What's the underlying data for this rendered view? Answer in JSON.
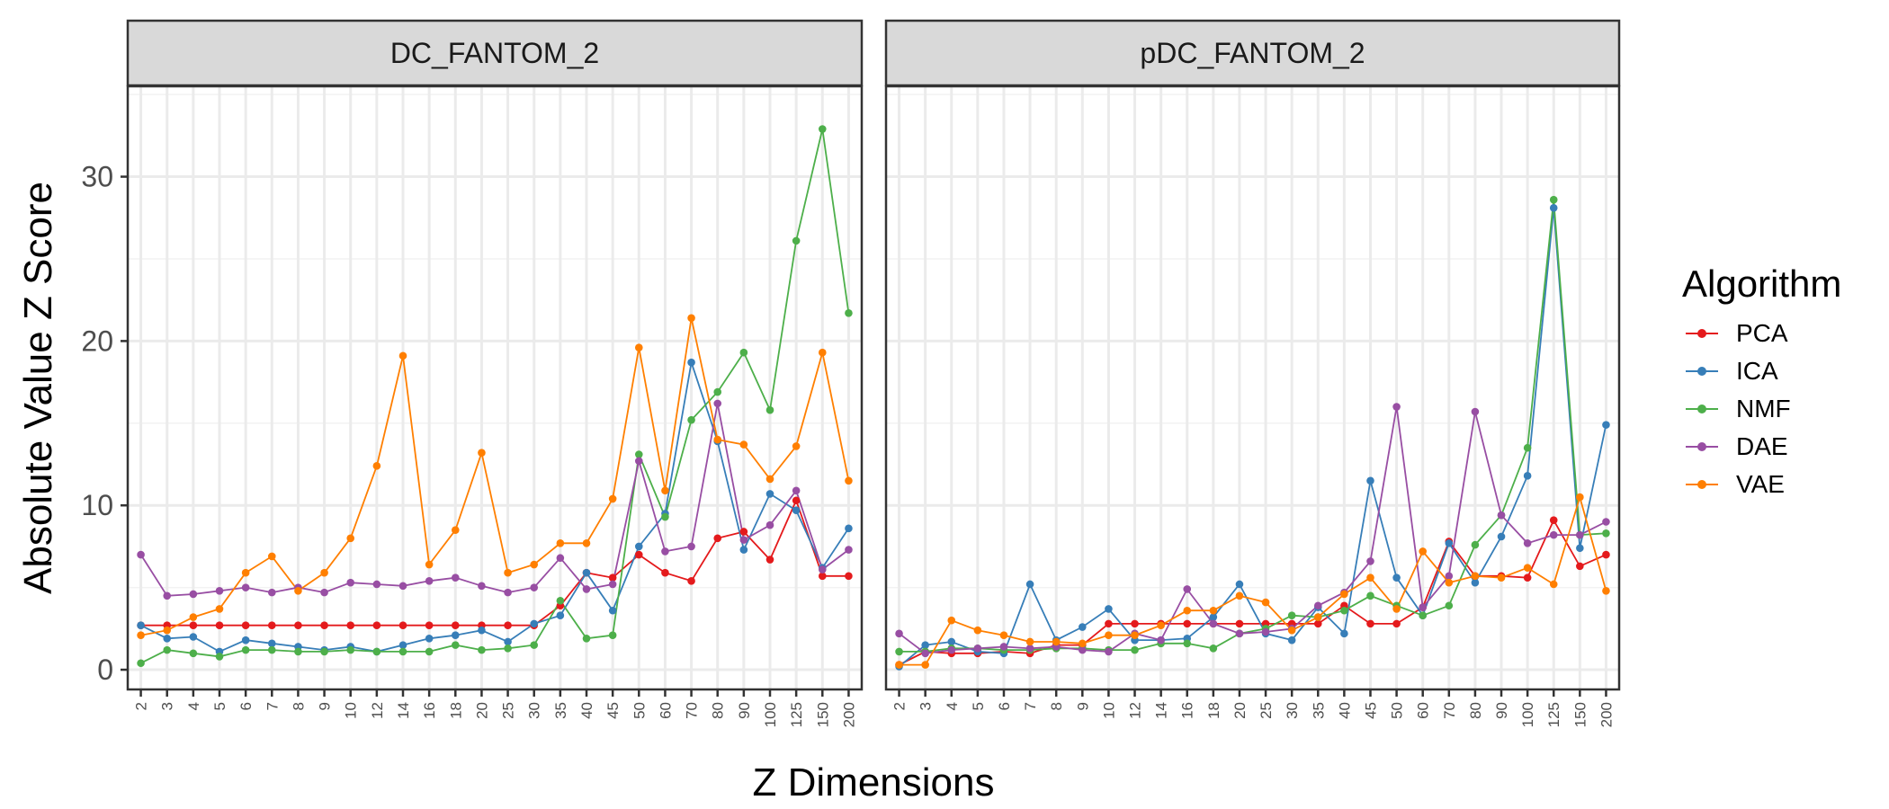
{
  "chart_data": {
    "type": "line",
    "xlabel": "Z Dimensions",
    "ylabel": "Absolute Value Z Score",
    "ylim": [
      -1.2,
      35.5
    ],
    "yticks": [
      0,
      10,
      20,
      30
    ],
    "grid": true,
    "legend_title": "Algorithm",
    "legend_position": "right",
    "categories": [
      "2",
      "3",
      "4",
      "5",
      "6",
      "7",
      "8",
      "9",
      "10",
      "12",
      "14",
      "16",
      "18",
      "20",
      "25",
      "30",
      "35",
      "40",
      "45",
      "50",
      "60",
      "70",
      "80",
      "90",
      "100",
      "125",
      "150",
      "200"
    ],
    "panels": [
      {
        "title": "DC_FANTOM_2",
        "series": [
          {
            "name": "PCA",
            "color": "#E41A1C",
            "values": [
              2.7,
              2.7,
              2.7,
              2.7,
              2.7,
              2.7,
              2.7,
              2.7,
              2.7,
              2.7,
              2.7,
              2.7,
              2.7,
              2.7,
              2.7,
              2.7,
              3.9,
              5.9,
              5.6,
              7.0,
              5.9,
              5.4,
              8.0,
              8.4,
              6.7,
              10.3,
              5.7,
              5.7
            ]
          },
          {
            "name": "ICA",
            "color": "#377EB8",
            "values": [
              2.7,
              1.9,
              2.0,
              1.1,
              1.8,
              1.6,
              1.4,
              1.2,
              1.4,
              1.1,
              1.5,
              1.9,
              2.1,
              2.4,
              1.7,
              2.8,
              3.3,
              5.9,
              3.6,
              7.5,
              9.5,
              18.7,
              13.9,
              7.3,
              10.7,
              9.7,
              6.2,
              8.6
            ]
          },
          {
            "name": "NMF",
            "color": "#4DAF4A",
            "values": [
              0.4,
              1.2,
              1.0,
              0.8,
              1.2,
              1.2,
              1.1,
              1.1,
              1.2,
              1.1,
              1.1,
              1.1,
              1.5,
              1.2,
              1.3,
              1.5,
              4.2,
              1.9,
              2.1,
              13.1,
              9.3,
              15.2,
              16.9,
              19.3,
              15.8,
              26.1,
              32.9,
              21.7
            ]
          },
          {
            "name": "DAE",
            "color": "#984EA3",
            "values": [
              7.0,
              4.5,
              4.6,
              4.8,
              5.0,
              4.7,
              5.0,
              4.7,
              5.3,
              5.2,
              5.1,
              5.4,
              5.6,
              5.1,
              4.7,
              5.0,
              6.8,
              4.9,
              5.2,
              12.7,
              7.2,
              7.5,
              16.2,
              7.9,
              8.8,
              10.9,
              6.1,
              7.3
            ]
          },
          {
            "name": "VAE",
            "color": "#FF7F00",
            "values": [
              2.1,
              2.4,
              3.2,
              3.7,
              5.9,
              6.9,
              4.8,
              5.9,
              8.0,
              12.4,
              19.1,
              6.4,
              8.5,
              13.2,
              5.9,
              6.4,
              7.7,
              7.7,
              10.4,
              19.6,
              10.9,
              21.4,
              14.0,
              13.7,
              11.6,
              13.6,
              19.3,
              11.5
            ]
          }
        ]
      },
      {
        "title": "pDC_FANTOM_2",
        "series": [
          {
            "name": "PCA",
            "color": "#E41A1C",
            "values": [
              0.3,
              1.1,
              1.0,
              1.0,
              1.1,
              1.0,
              1.5,
              1.5,
              2.8,
              2.8,
              2.8,
              2.8,
              2.8,
              2.8,
              2.8,
              2.8,
              2.8,
              3.9,
              2.8,
              2.8,
              3.8,
              7.8,
              5.7,
              5.7,
              5.6,
              9.1,
              6.3,
              7.0
            ]
          },
          {
            "name": "ICA",
            "color": "#377EB8",
            "values": [
              0.2,
              1.5,
              1.7,
              1.1,
              1.0,
              5.2,
              1.8,
              2.6,
              3.7,
              1.8,
              1.8,
              1.9,
              3.2,
              5.2,
              2.2,
              1.8,
              3.8,
              2.2,
              11.5,
              5.6,
              3.3,
              7.7,
              5.3,
              8.1,
              11.8,
              28.1,
              7.4,
              14.9
            ]
          },
          {
            "name": "NMF",
            "color": "#4DAF4A",
            "values": [
              1.1,
              1.1,
              1.3,
              1.3,
              1.2,
              1.2,
              1.3,
              1.3,
              1.2,
              1.2,
              1.6,
              1.6,
              1.3,
              2.2,
              2.5,
              3.3,
              3.2,
              3.6,
              4.5,
              3.9,
              3.3,
              3.9,
              7.6,
              9.4,
              13.5,
              28.6,
              8.2,
              8.3
            ]
          },
          {
            "name": "DAE",
            "color": "#984EA3",
            "values": [
              2.2,
              1.0,
              1.2,
              1.3,
              1.4,
              1.3,
              1.4,
              1.2,
              1.1,
              2.2,
              1.8,
              4.9,
              2.8,
              2.2,
              2.3,
              2.5,
              3.9,
              4.7,
              6.6,
              16.0,
              3.8,
              5.7,
              15.7,
              9.4,
              7.7,
              8.2,
              8.2,
              9.0
            ]
          },
          {
            "name": "VAE",
            "color": "#FF7F00",
            "values": [
              0.3,
              0.3,
              3.0,
              2.4,
              2.1,
              1.7,
              1.7,
              1.6,
              2.1,
              2.1,
              2.7,
              3.6,
              3.6,
              4.5,
              4.1,
              2.4,
              3.2,
              4.6,
              5.6,
              3.7,
              7.2,
              5.3,
              5.7,
              5.6,
              6.2,
              5.2,
              10.5,
              4.8
            ]
          }
        ]
      }
    ]
  }
}
